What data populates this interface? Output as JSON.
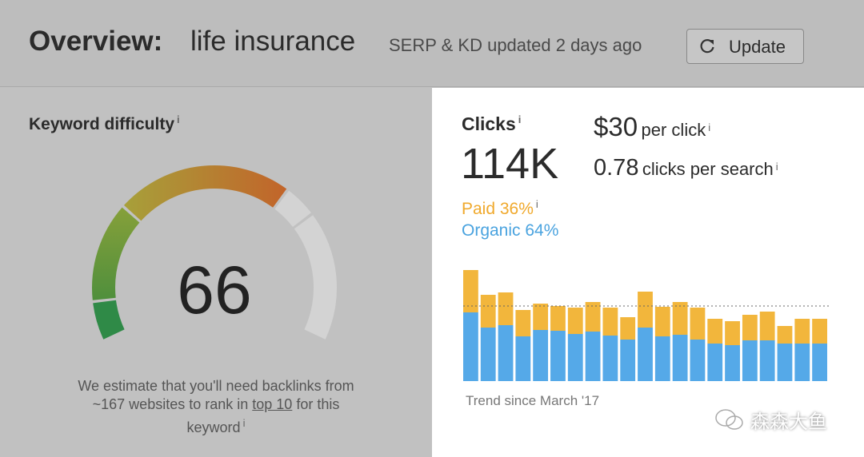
{
  "header": {
    "title": "Overview:",
    "keyword": "life insurance",
    "status": "SERP & KD updated 2 days ago",
    "button": "Update"
  },
  "info_icon": "i",
  "keyword_difficulty": {
    "label": "Keyword difficulty",
    "value": 66,
    "range": [
      0,
      100
    ],
    "description": "We estimate that you'll need backlinks from ~167 websites to rank in ",
    "link": "top 10",
    "description_end": " for this keyword"
  },
  "clicks": {
    "label": "Clicks",
    "value": "114K",
    "cpc": "$30",
    "cpc_label": "per click",
    "cps": "0.78",
    "cps_label": "clicks per search"
  },
  "chart_data": {
    "type": "bar",
    "stacked": true,
    "categories": [
      null,
      null,
      null,
      null,
      null,
      null,
      null,
      null,
      null,
      null,
      null,
      null,
      null,
      null,
      null,
      null,
      null,
      null,
      null,
      null,
      null
    ],
    "series": [
      {
        "name": "Paid 36%",
        "color": "#f2b63c",
        "values": [
          53,
          41,
          41,
          33,
          33,
          31,
          33,
          37,
          35,
          28,
          45,
          37,
          41,
          40,
          31,
          30,
          32,
          36,
          22,
          31,
          31
        ]
      },
      {
        "name": "Organic 64%",
        "color": "#55a9e8",
        "values": [
          86,
          67,
          70,
          56,
          64,
          63,
          59,
          62,
          57,
          52,
          67,
          56,
          58,
          52,
          47,
          45,
          51,
          51,
          47,
          47,
          47
        ]
      }
    ],
    "ylim": [
      0,
      140
    ],
    "reference_line": 94,
    "caption": "Trend since March '17"
  },
  "watermark": "森森大鱼"
}
